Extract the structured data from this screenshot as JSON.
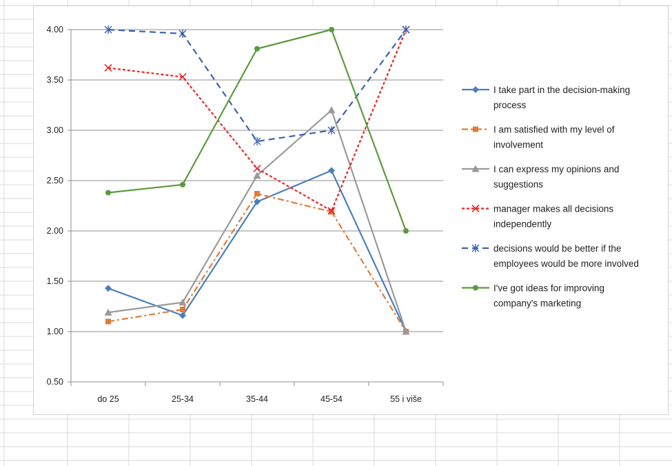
{
  "chart_data": {
    "type": "line",
    "categories": [
      "do 25",
      "25-34",
      "35-44",
      "45-54",
      "55 i više"
    ],
    "ylim": [
      0.5,
      4.0
    ],
    "yticks": [
      "0.50",
      "1.00",
      "1.50",
      "2.00",
      "2.50",
      "3.00",
      "3.50",
      "4.00"
    ],
    "grid": true,
    "legend_position": "right",
    "series": [
      {
        "name_lines": [
          "I take part in the decision-making",
          "process"
        ],
        "values": [
          1.43,
          1.16,
          2.29,
          2.6,
          1.0
        ],
        "color": "#4a7ebb",
        "dash": "solid",
        "marker": "diamond"
      },
      {
        "name_lines": [
          "I am satisfied with my level of",
          "involvement"
        ],
        "values": [
          1.1,
          1.22,
          2.37,
          2.19,
          1.0
        ],
        "color": "#e07b39",
        "dash": "dashdot",
        "marker": "square"
      },
      {
        "name_lines": [
          "I can express my opinions and",
          "suggestions"
        ],
        "values": [
          1.19,
          1.29,
          2.55,
          3.2,
          1.0
        ],
        "color": "#999999",
        "dash": "solid",
        "marker": "triangle"
      },
      {
        "name_lines": [
          "manager makes all decisions",
          "independently"
        ],
        "values": [
          3.62,
          3.53,
          2.62,
          2.2,
          4.0
        ],
        "color": "#ee2222",
        "dash": "dotted",
        "marker": "x"
      },
      {
        "name_lines": [
          "decisions would be better if the",
          "employees would be more involved"
        ],
        "values": [
          4.0,
          3.96,
          2.89,
          3.0,
          4.0
        ],
        "color": "#3a62b0",
        "dash": "dashed",
        "marker": "star"
      },
      {
        "name_lines": [
          "I've got ideas for improving",
          "company's marketing"
        ],
        "values": [
          2.38,
          2.46,
          3.81,
          4.0,
          2.0
        ],
        "color": "#5a9a3c",
        "dash": "solid",
        "marker": "circle"
      }
    ]
  }
}
